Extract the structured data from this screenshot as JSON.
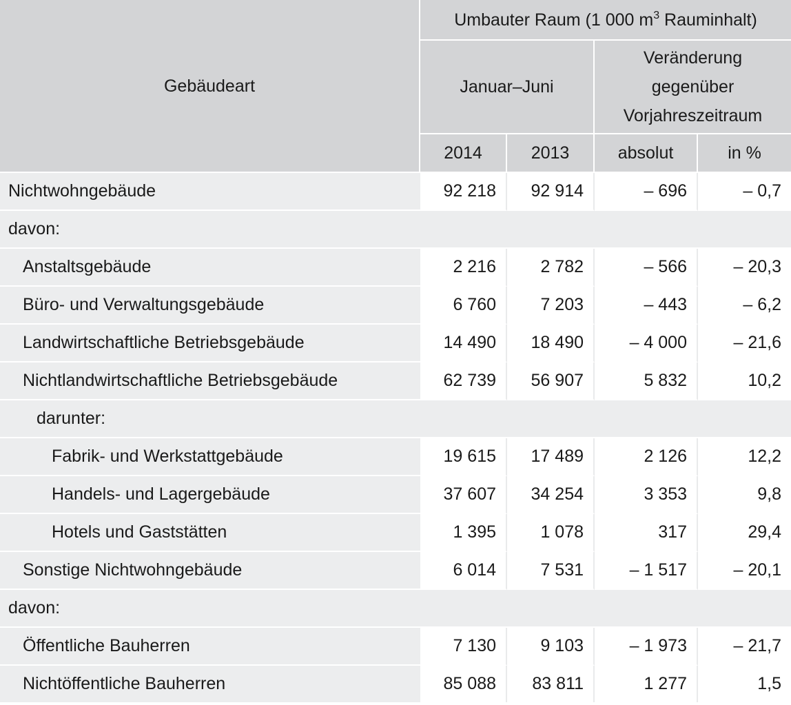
{
  "header": {
    "group_label": "Umbauter Raum (1 000 m",
    "group_sup": "3",
    "group_suffix": " Rauminhalt)",
    "col_gebaeudeart": "Gebäudeart",
    "period_label": "Januar–Juni",
    "change_label_line1": "Veränderung",
    "change_label_line2": "gegenüber",
    "change_label_line3": "Vorjahreszeitraum",
    "year_2014": "2014",
    "year_2013": "2013",
    "absolut": "absolut",
    "in_percent": "in %"
  },
  "rows": [
    {
      "label": "Nichtwohngebäude",
      "v2014": "92 218",
      "v2013": "92 914",
      "abs": "– 696",
      "pct": "– 0,7"
    },
    {
      "label": "davon:"
    },
    {
      "label": "Anstaltsgebäude",
      "v2014": "2 216",
      "v2013": "2 782",
      "abs": "– 566",
      "pct": "– 20,3"
    },
    {
      "label": "Büro- und Verwaltungsgebäude",
      "v2014": "6 760",
      "v2013": "7 203",
      "abs": "– 443",
      "pct": "– 6,2"
    },
    {
      "label": "Landwirtschaftliche Betriebsgebäude",
      "v2014": "14 490",
      "v2013": "18 490",
      "abs": "– 4 000",
      "pct": "– 21,6"
    },
    {
      "label": "Nichtlandwirtschaftliche Betriebsgebäude",
      "v2014": "62 739",
      "v2013": "56 907",
      "abs": "5 832",
      "pct": "10,2"
    },
    {
      "label": "darunter:"
    },
    {
      "label": "Fabrik- und Werkstattgebäude",
      "v2014": "19 615",
      "v2013": "17 489",
      "abs": "2 126",
      "pct": "12,2"
    },
    {
      "label": "Handels- und Lagergebäude",
      "v2014": "37 607",
      "v2013": "34 254",
      "abs": "3 353",
      "pct": "9,8"
    },
    {
      "label": "Hotels und Gaststätten",
      "v2014": "1 395",
      "v2013": "1 078",
      "abs": "317",
      "pct": "29,4"
    },
    {
      "label": "Sonstige Nichtwohngebäude",
      "v2014": "6 014",
      "v2013": "7 531",
      "abs": "– 1 517",
      "pct": "– 20,1"
    },
    {
      "label": "davon:"
    },
    {
      "label": "Öffentliche Bauherren",
      "v2014": "7 130",
      "v2013": "9 103",
      "abs": "– 1 973",
      "pct": "– 21,7"
    },
    {
      "label": "Nichtöffentliche Bauherren",
      "v2014": "85 088",
      "v2013": "83 811",
      "abs": "1 277",
      "pct": "1,5"
    }
  ]
}
